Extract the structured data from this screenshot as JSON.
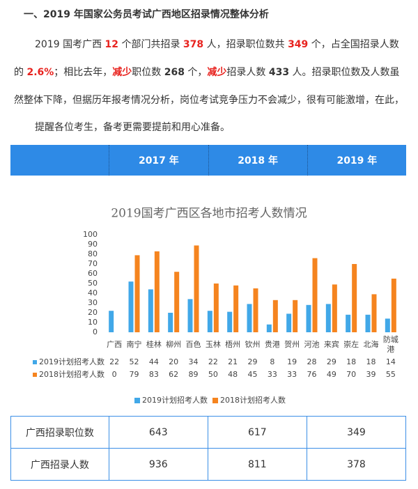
{
  "heading": "一、2019 年国家公务员考试广西地区招录情况整体分析",
  "paragraph": [
    {
      "text": "2019 国考广西 "
    },
    {
      "text": "12",
      "color": "#e8231f"
    },
    {
      "text": " 个部门共招录 "
    },
    {
      "text": "378",
      "color": "#e8231f"
    },
    {
      "text": " 人，招录职位数共 "
    },
    {
      "text": "349",
      "color": "#e8231f"
    },
    {
      "text": " 个，占全国招录人数的 "
    },
    {
      "text": "2.6%",
      "color": "#e8231f"
    },
    {
      "text": "；相比去年，"
    },
    {
      "text": "减少",
      "color": "#e8231f"
    },
    {
      "text": "职位数 "
    },
    {
      "text": "268",
      "color": "#333"
    },
    {
      "text": " 个，"
    },
    {
      "text": "减少",
      "color": "#e8231f"
    },
    {
      "text": "招录人数 "
    },
    {
      "text": "433",
      "color": "#333"
    },
    {
      "text": " 人。招录职位数及人数虽然整体下降，但据历年报考情况分析，岗位考试竞争压力不会减少，很有可能激增，在此，"
    }
  ],
  "reminder": "提醒各位考生，备考更需要提前和用心准备。",
  "year_header": [
    "2017 年",
    "2018 年",
    "2019 年"
  ],
  "table": {
    "rows": [
      [
        "广西招录职位数",
        "643",
        "617",
        "349"
      ],
      [
        "广西招录人数",
        "936",
        "811",
        "378"
      ]
    ]
  },
  "chart_data": {
    "type": "bar",
    "title": "2019国考广西区各地市招考人数情况",
    "categories": [
      "广西",
      "南宁",
      "桂林",
      "柳州",
      "百色",
      "玉林",
      "梧州",
      "钦州",
      "贵港",
      "贺州",
      "河池",
      "来宾",
      "崇左",
      "北海",
      "防城港"
    ],
    "series": [
      {
        "name": "2019计划招考人数",
        "color": "#41a8e8",
        "values": [
          22,
          52,
          44,
          20,
          34,
          22,
          21,
          29,
          8,
          19,
          28,
          29,
          18,
          18,
          14
        ]
      },
      {
        "name": "2018计划招考人数",
        "color": "#f5841f",
        "values": [
          0,
          79,
          83,
          62,
          89,
          50,
          48,
          45,
          33,
          33,
          76,
          49,
          70,
          39,
          55
        ]
      }
    ],
    "ylim": [
      0,
      100
    ],
    "yticks": [
      0,
      10,
      20,
      30,
      40,
      50,
      60,
      70,
      80,
      90,
      100
    ],
    "legend": "bottom"
  }
}
